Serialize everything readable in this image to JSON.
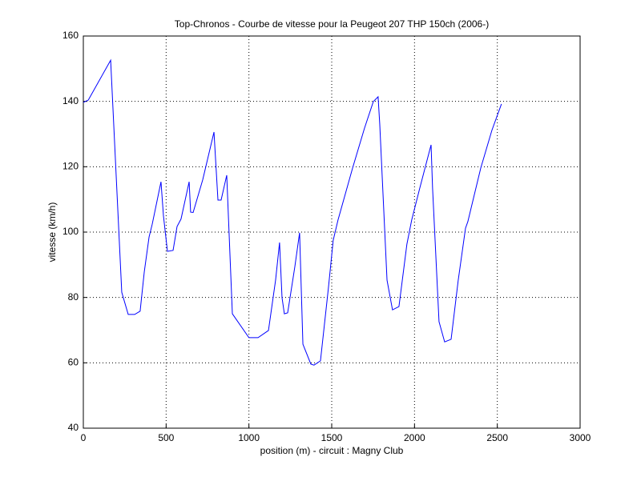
{
  "chart_data": {
    "type": "line",
    "title": "Top-Chronos - Courbe de vitesse pour la Peugeot 207 THP 150ch (2006-)",
    "xlabel": "position (m) - circuit : Magny Club",
    "ylabel": "vitesse (km/h)",
    "xlim": [
      0,
      3000
    ],
    "xticks": [
      0,
      500,
      1000,
      1500,
      2000,
      2500,
      3000
    ],
    "ylim": [
      40,
      160
    ],
    "yticks": [
      40,
      60,
      80,
      100,
      120,
      140,
      160
    ],
    "grid": true,
    "series": [
      {
        "color": "#0000ff",
        "x": [
          0,
          30,
          165,
          232,
          271,
          310,
          343,
          368,
          397,
          416,
          469,
          484,
          508,
          542,
          566,
          590,
          639,
          648,
          663,
          721,
          789,
          813,
          832,
          866,
          900,
          1000,
          1055,
          1118,
          1161,
          1185,
          1200,
          1214,
          1234,
          1277,
          1306,
          1326,
          1374,
          1393,
          1432,
          1480,
          1509,
          1538,
          1626,
          1698,
          1751,
          1780,
          1790,
          1834,
          1867,
          1906,
          1954,
          1983,
          2032,
          2100,
          2109,
          2148,
          2182,
          2221,
          2264,
          2308,
          2322,
          2400,
          2467,
          2525
        ],
        "values": [
          139.7,
          140.4,
          152.6,
          81.6,
          74.8,
          74.8,
          75.8,
          87.8,
          98.5,
          102.4,
          115.4,
          104.9,
          94.1,
          94.4,
          101.7,
          104,
          115.4,
          106.1,
          106,
          116,
          130.6,
          109.8,
          109.8,
          117.4,
          75,
          67.7,
          67.7,
          69.9,
          85.3,
          96.8,
          79.9,
          75,
          75.3,
          89.3,
          99.8,
          65.7,
          59.6,
          59.3,
          60.6,
          82.9,
          97.5,
          103.7,
          119.6,
          131.8,
          139.9,
          141.4,
          133.1,
          85.3,
          76.2,
          77.2,
          96.3,
          103.7,
          113.5,
          126.7,
          113.5,
          72.6,
          66.4,
          67.2,
          85.3,
          101.2,
          103.2,
          119.6,
          131.1,
          139.2
        ]
      }
    ]
  }
}
